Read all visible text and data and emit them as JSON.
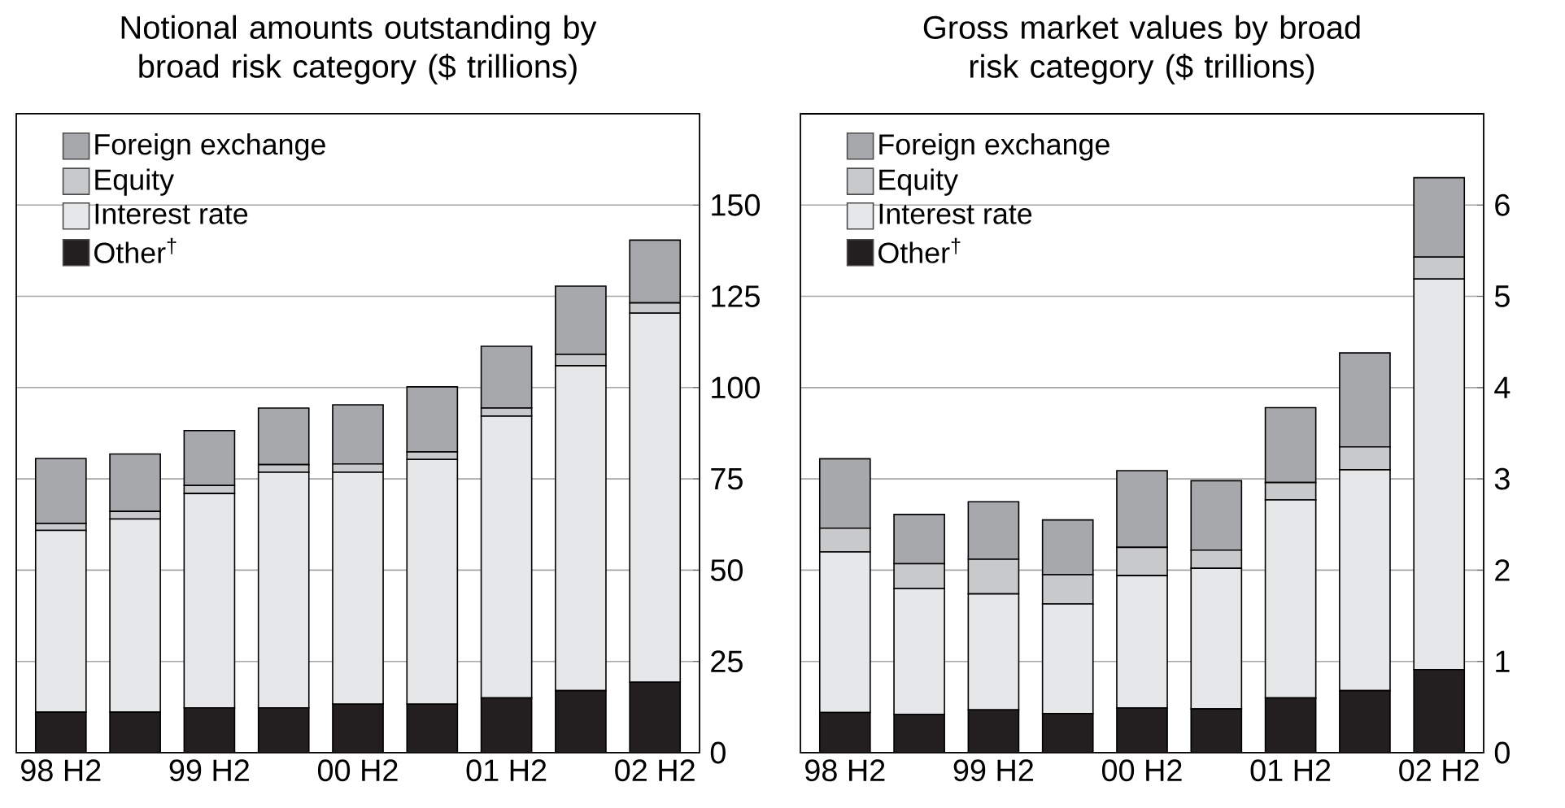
{
  "chart_data": [
    {
      "type": "bar",
      "stacked": true,
      "title": "Notional amounts outstanding by broad risk category ($ trillions)",
      "categories": [
        "98 H2",
        null,
        "99 H2",
        null,
        "00 H2",
        null,
        "01 H2",
        null,
        "02 H2"
      ],
      "series": [
        {
          "name": "Other$^{†}$",
          "color": "#231f20",
          "values": [
            11.1,
            11.1,
            12.3,
            12.3,
            13.3,
            13.3,
            15.0,
            17.0,
            19.3
          ]
        },
        {
          "name": "Interest rate",
          "color": "#e6e7e8",
          "values": [
            49.8,
            52.9,
            58.7,
            64.5,
            63.5,
            67.0,
            77.2,
            89.0,
            101.1
          ]
        },
        {
          "name": "Equity",
          "color": "#c8c9cb",
          "values": [
            1.9,
            2.1,
            2.2,
            2.1,
            2.3,
            2.1,
            2.2,
            3.1,
            2.8
          ]
        },
        {
          "name": "Foreign exchange",
          "color": "#a7a8ab",
          "values": [
            17.8,
            15.7,
            15.0,
            15.5,
            16.2,
            17.8,
            16.9,
            18.7,
            17.2
          ]
        }
      ],
      "ylim": [
        0,
        175
      ],
      "yticks": [
        0,
        25,
        50,
        75,
        100,
        125,
        150
      ],
      "grid": "y",
      "legend": "top left"
    },
    {
      "type": "bar",
      "stacked": true,
      "title": "Gross market values by broad risk category ($ trillions)",
      "categories": [
        "98 H2",
        null,
        "99 H2",
        null,
        "00 H2",
        null,
        "01 H2",
        null,
        "02 H2"
      ],
      "series": [
        {
          "name": "Other$^{†}$",
          "color": "#231f20",
          "values": [
            0.44,
            0.42,
            0.47,
            0.43,
            0.49,
            0.48,
            0.6,
            0.68,
            0.91
          ]
        },
        {
          "name": "Interest rate",
          "color": "#e6e7e8",
          "values": [
            1.76,
            1.38,
            1.27,
            1.2,
            1.45,
            1.54,
            2.17,
            2.42,
            4.28
          ]
        },
        {
          "name": "Equity",
          "color": "#c8c9cb",
          "values": [
            0.26,
            0.27,
            0.38,
            0.32,
            0.31,
            0.2,
            0.19,
            0.25,
            0.24
          ]
        },
        {
          "name": "Foreign exchange",
          "color": "#a7a8ab",
          "values": [
            0.76,
            0.54,
            0.63,
            0.6,
            0.84,
            0.76,
            0.82,
            1.03,
            0.87
          ]
        }
      ],
      "ylim": [
        0,
        7
      ],
      "yticks": [
        0,
        1,
        2,
        3,
        4,
        5,
        6
      ],
      "grid": "y",
      "legend": "top left"
    }
  ]
}
